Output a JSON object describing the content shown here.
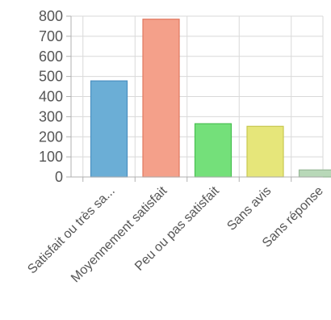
{
  "chart_data": {
    "type": "bar",
    "categories": [
      "Satisfait ou très sa...",
      "Moyennement satisfait",
      "Peu ou pas satisfait",
      "Sans avis",
      "Sans réponse"
    ],
    "values": [
      478,
      785,
      265,
      252,
      35
    ],
    "ylim": [
      0,
      800
    ],
    "yticks": [
      0,
      100,
      200,
      300,
      400,
      500,
      600,
      700,
      800
    ],
    "ytick_labels": [
      "0",
      "100",
      "200",
      "300",
      "400",
      "500",
      "600",
      "700",
      "800"
    ],
    "grid": true,
    "legend": "none",
    "bar_colors": [
      "#6baed6",
      "#f4a08a",
      "#74e07a",
      "#e6e67a",
      "#b8d8b8"
    ],
    "bar_edge_colors": [
      "#4a8fc0",
      "#e07860",
      "#48c050",
      "#c8c850",
      "#98b898"
    ]
  }
}
